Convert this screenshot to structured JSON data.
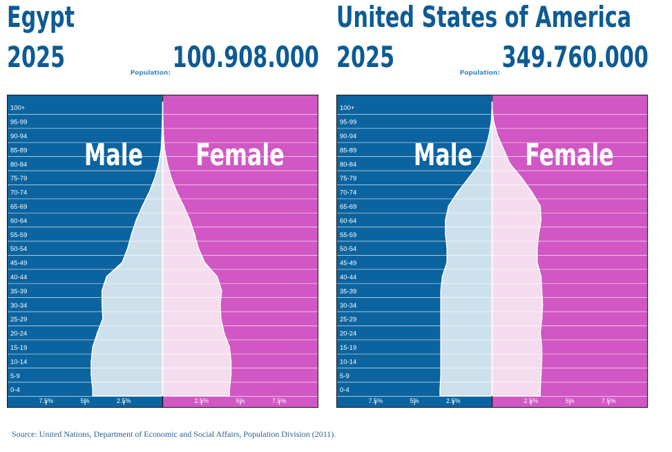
{
  "source": "Source: United Nations, Department of Economic and Social Affairs, Population Division (2011).",
  "colors": {
    "male_bg": "#0b64a0",
    "female_bg": "#d157c4",
    "male_fill": "#cfe0ed",
    "female_fill": "#f5ddef",
    "title": "#0d5b94"
  },
  "chart_data": [
    {
      "type": "area",
      "title": "Egypt",
      "year": "2025",
      "population_label": "Population:",
      "population": "100.908.000",
      "left_label": "Male",
      "right_label": "Female",
      "x_ticks": [
        "7.5%",
        "5%",
        "2.5%",
        "2.5%",
        "5%",
        "7.5%"
      ],
      "xlim": [
        -10,
        10
      ],
      "categories": [
        "100+",
        "95-99",
        "90-94",
        "85-89",
        "80-84",
        "75-79",
        "70-74",
        "65-69",
        "60-64",
        "55-59",
        "50-54",
        "45-49",
        "40-44",
        "35-39",
        "30-34",
        "25-29",
        "20-24",
        "15-19",
        "10-14",
        "5-9",
        "0-4"
      ],
      "series": [
        {
          "name": "Male",
          "values": [
            0.0,
            0.02,
            0.05,
            0.1,
            0.25,
            0.5,
            0.85,
            1.3,
            1.7,
            2.0,
            2.25,
            2.6,
            3.6,
            3.9,
            3.9,
            3.85,
            4.2,
            4.5,
            4.6,
            4.6,
            4.5
          ]
        },
        {
          "name": "Female",
          "values": [
            0.0,
            0.02,
            0.05,
            0.12,
            0.3,
            0.55,
            0.9,
            1.35,
            1.75,
            2.05,
            2.3,
            2.7,
            3.5,
            3.8,
            3.7,
            3.75,
            3.95,
            4.3,
            4.4,
            4.4,
            4.3
          ]
        }
      ]
    },
    {
      "type": "area",
      "title": "United States of America",
      "year": "2025",
      "population_label": "Population:",
      "population": "349.760.000",
      "left_label": "Male",
      "right_label": "Female",
      "x_ticks": [
        "7.5%",
        "5%",
        "2.5%",
        "2.5%",
        "5%",
        "7.5%"
      ],
      "xlim": [
        -10,
        10
      ],
      "categories": [
        "100+",
        "95-99",
        "90-94",
        "85-89",
        "80-84",
        "75-79",
        "70-74",
        "65-69",
        "60-64",
        "55-59",
        "50-54",
        "45-49",
        "40-44",
        "35-39",
        "30-34",
        "25-29",
        "20-24",
        "15-19",
        "10-14",
        "5-9",
        "0-4"
      ],
      "series": [
        {
          "name": "Male",
          "values": [
            0.0,
            0.05,
            0.2,
            0.45,
            0.8,
            1.5,
            2.2,
            2.8,
            3.0,
            3.0,
            2.9,
            2.9,
            3.2,
            3.3,
            3.3,
            3.3,
            3.3,
            3.3,
            3.3,
            3.3,
            3.35
          ]
        },
        {
          "name": "Female",
          "values": [
            0.0,
            0.1,
            0.35,
            0.75,
            1.15,
            1.9,
            2.55,
            3.1,
            3.15,
            3.0,
            2.9,
            2.9,
            3.15,
            3.2,
            3.25,
            3.2,
            3.1,
            3.2,
            3.2,
            3.15,
            3.1
          ]
        }
      ]
    }
  ]
}
